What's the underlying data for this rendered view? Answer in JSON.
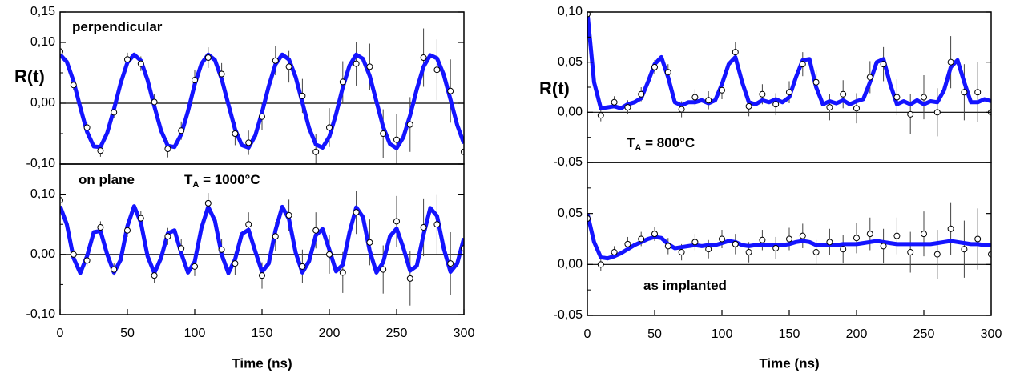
{
  "chart_data": [
    {
      "type": "line",
      "ylabel": "R(t)",
      "xlim": [
        0,
        300
      ],
      "ylim": [
        -0.1,
        0.15
      ],
      "yticks": [
        {
          "value": 0.15,
          "label": "0,15"
        },
        {
          "value": 0.1,
          "label": "0,10"
        },
        {
          "value": 0,
          "label": "0,00"
        },
        {
          "value": -0.1,
          "label": "-0,10"
        }
      ],
      "yminor": [
        0.05,
        -0.05
      ],
      "annotations": [
        {
          "text": "perpendicular"
        }
      ],
      "x": [
        0,
        5,
        10,
        15,
        20,
        25,
        30,
        35,
        40,
        45,
        50,
        55,
        60,
        65,
        70,
        75,
        80,
        85,
        90,
        95,
        100,
        105,
        110,
        115,
        120,
        125,
        130,
        135,
        140,
        145,
        150,
        155,
        160,
        165,
        170,
        175,
        180,
        185,
        190,
        195,
        200,
        205,
        210,
        215,
        220,
        225,
        230,
        235,
        240,
        245,
        250,
        255,
        260,
        265,
        270,
        275,
        280,
        285,
        290,
        295,
        300
      ],
      "series": [
        {
          "color": "#1414ff",
          "values": [
            0.08,
            0.068,
            0.036,
            -0.007,
            -0.047,
            -0.071,
            -0.072,
            -0.049,
            -0.01,
            0.033,
            0.067,
            0.08,
            0.07,
            0.038,
            -0.005,
            -0.045,
            -0.07,
            -0.072,
            -0.051,
            -0.013,
            0.031,
            0.065,
            0.08,
            0.071,
            0.04,
            -0.002,
            -0.043,
            -0.069,
            -0.073,
            -0.053,
            -0.015,
            0.028,
            0.064,
            0.08,
            0.072,
            0.043,
            0.001,
            -0.041,
            -0.068,
            -0.073,
            -0.055,
            -0.018,
            0.026,
            0.062,
            0.08,
            0.073,
            0.045,
            0.003,
            -0.039,
            -0.067,
            -0.074,
            -0.056,
            -0.02,
            0.023,
            0.06,
            0.079,
            0.074,
            0.047,
            0.006,
            -0.036,
            -0.066
          ]
        }
      ],
      "points": {
        "x": [
          0,
          10,
          20,
          30,
          40,
          50,
          60,
          70,
          80,
          90,
          100,
          110,
          120,
          130,
          140,
          150,
          160,
          170,
          180,
          190,
          200,
          210,
          220,
          230,
          240,
          250,
          260,
          270,
          280,
          290,
          300
        ],
        "values": [
          0.085,
          0.03,
          -0.04,
          -0.078,
          -0.015,
          0.072,
          0.065,
          0.002,
          -0.075,
          -0.045,
          0.038,
          0.075,
          0.048,
          -0.05,
          -0.065,
          -0.022,
          0.07,
          0.06,
          0.012,
          -0.08,
          -0.04,
          0.035,
          0.065,
          0.06,
          -0.05,
          -0.06,
          -0.035,
          0.075,
          0.055,
          0.02,
          -0.08
        ],
        "errors": [
          0.008,
          0.008,
          0.009,
          0.01,
          0.01,
          0.011,
          0.012,
          0.013,
          0.014,
          0.015,
          0.016,
          0.017,
          0.018,
          0.019,
          0.02,
          0.022,
          0.024,
          0.026,
          0.028,
          0.03,
          0.032,
          0.034,
          0.036,
          0.038,
          0.04,
          0.042,
          0.045,
          0.048,
          0.05,
          0.052,
          0.055
        ]
      }
    },
    {
      "type": "line",
      "xlabel": "Time (ns)",
      "xlim": [
        0,
        300
      ],
      "ylim": [
        -0.1,
        0.15
      ],
      "xticks": [
        0,
        50,
        100,
        150,
        200,
        250,
        300
      ],
      "yticks": [
        {
          "value": 0.1,
          "label": "0,10"
        },
        {
          "value": 0,
          "label": "0,00"
        },
        {
          "value": -0.1,
          "label": "-0,10"
        }
      ],
      "yminor": [
        0.05,
        -0.05
      ],
      "annotations": [
        {
          "text": "on plane"
        },
        {
          "text": "T",
          "sub": "A",
          "rest": " = 1000°C"
        }
      ],
      "x": [
        0,
        5,
        10,
        15,
        20,
        25,
        30,
        35,
        40,
        45,
        50,
        55,
        60,
        65,
        70,
        75,
        80,
        85,
        90,
        95,
        100,
        105,
        110,
        115,
        120,
        125,
        130,
        135,
        140,
        145,
        150,
        155,
        160,
        165,
        170,
        175,
        180,
        185,
        190,
        195,
        200,
        205,
        210,
        215,
        220,
        225,
        230,
        235,
        240,
        245,
        250,
        255,
        260,
        265,
        270,
        275,
        280,
        285,
        290,
        295,
        300
      ],
      "series": [
        {
          "color": "#1414ff",
          "values": [
            0.08,
            0.05,
            -0.006,
            -0.031,
            -0.003,
            0.037,
            0.039,
            0.0,
            -0.03,
            -0.009,
            0.047,
            0.08,
            0.053,
            -0.003,
            -0.031,
            -0.006,
            0.035,
            0.04,
            0.002,
            -0.03,
            -0.012,
            0.044,
            0.079,
            0.056,
            0.0,
            -0.031,
            -0.008,
            0.034,
            0.041,
            0.005,
            -0.029,
            -0.015,
            0.04,
            0.079,
            0.059,
            0.003,
            -0.03,
            -0.011,
            0.032,
            0.042,
            0.008,
            -0.028,
            -0.017,
            0.037,
            0.078,
            0.062,
            0.006,
            -0.03,
            -0.013,
            0.03,
            0.043,
            0.011,
            -0.027,
            -0.019,
            0.033,
            0.077,
            0.064,
            0.01,
            -0.029,
            -0.015,
            0.027
          ]
        }
      ],
      "points": {
        "x": [
          0,
          10,
          20,
          30,
          40,
          50,
          60,
          70,
          80,
          90,
          100,
          110,
          120,
          130,
          140,
          150,
          160,
          170,
          180,
          190,
          200,
          210,
          220,
          230,
          240,
          250,
          260,
          270,
          280,
          290,
          300
        ],
        "values": [
          0.09,
          0.0,
          -0.01,
          0.045,
          -0.025,
          0.04,
          0.06,
          -0.035,
          0.03,
          0.01,
          -0.02,
          0.085,
          0.008,
          -0.015,
          0.05,
          -0.035,
          0.03,
          0.065,
          -0.02,
          0.04,
          0.0,
          -0.03,
          0.07,
          0.02,
          -0.025,
          0.055,
          -0.04,
          0.045,
          0.05,
          -0.015,
          0.01
        ],
        "errors": [
          0.008,
          0.008,
          0.009,
          0.01,
          0.01,
          0.011,
          0.012,
          0.013,
          0.014,
          0.015,
          0.016,
          0.017,
          0.018,
          0.019,
          0.02,
          0.022,
          0.024,
          0.026,
          0.028,
          0.03,
          0.032,
          0.034,
          0.036,
          0.038,
          0.04,
          0.042,
          0.045,
          0.048,
          0.05,
          0.052,
          0.055
        ]
      }
    },
    {
      "type": "line",
      "ylabel": "R(t)",
      "xlim": [
        0,
        300
      ],
      "ylim": [
        -0.05,
        0.1
      ],
      "yticks": [
        {
          "value": 0.1,
          "label": "0,10"
        },
        {
          "value": 0.05,
          "label": "0,05"
        },
        {
          "value": 0,
          "label": "0,00"
        },
        {
          "value": -0.05,
          "label": "-0,05"
        }
      ],
      "yminor": [
        0.075,
        0.025,
        -0.025
      ],
      "annotations": [
        {
          "text": "T",
          "sub": "A",
          "rest": " = 800°C"
        }
      ],
      "x": [
        0,
        5,
        10,
        15,
        20,
        25,
        30,
        35,
        40,
        45,
        50,
        55,
        60,
        65,
        70,
        75,
        80,
        85,
        90,
        95,
        100,
        105,
        110,
        115,
        120,
        125,
        130,
        135,
        140,
        145,
        150,
        155,
        160,
        165,
        170,
        175,
        180,
        185,
        190,
        195,
        200,
        205,
        210,
        215,
        220,
        225,
        230,
        235,
        240,
        245,
        250,
        255,
        260,
        265,
        270,
        275,
        280,
        285,
        290,
        295,
        300
      ],
      "series": [
        {
          "color": "#1414ff",
          "values": [
            0.1,
            0.03,
            0.004,
            0.005,
            0.006,
            0.004,
            0.008,
            0.01,
            0.014,
            0.03,
            0.048,
            0.055,
            0.035,
            0.01,
            0.007,
            0.01,
            0.01,
            0.012,
            0.009,
            0.012,
            0.028,
            0.048,
            0.055,
            0.03,
            0.01,
            0.008,
            0.012,
            0.01,
            0.013,
            0.01,
            0.015,
            0.035,
            0.052,
            0.053,
            0.025,
            0.008,
            0.011,
            0.009,
            0.012,
            0.008,
            0.011,
            0.013,
            0.03,
            0.05,
            0.053,
            0.028,
            0.008,
            0.011,
            0.008,
            0.012,
            0.008,
            0.011,
            0.01,
            0.022,
            0.045,
            0.052,
            0.03,
            0.01,
            0.01,
            0.013,
            0.011
          ]
        }
      ],
      "points": {
        "x": [
          0,
          10,
          20,
          30,
          40,
          50,
          60,
          70,
          80,
          90,
          100,
          110,
          120,
          130,
          140,
          150,
          160,
          170,
          180,
          190,
          200,
          210,
          220,
          230,
          240,
          250,
          260,
          270,
          280,
          290,
          300
        ],
        "values": [
          0.098,
          -0.003,
          0.01,
          0.005,
          0.018,
          0.045,
          0.04,
          0.003,
          0.015,
          0.012,
          0.022,
          0.06,
          0.006,
          0.018,
          0.008,
          0.02,
          0.048,
          0.03,
          0.005,
          0.018,
          0.004,
          0.035,
          0.048,
          0.015,
          -0.002,
          0.015,
          0.0,
          0.05,
          0.02,
          0.02,
          0.0
        ],
        "errors": [
          0.006,
          0.006,
          0.006,
          0.007,
          0.007,
          0.007,
          0.008,
          0.008,
          0.008,
          0.009,
          0.009,
          0.01,
          0.01,
          0.01,
          0.011,
          0.011,
          0.012,
          0.012,
          0.013,
          0.014,
          0.015,
          0.016,
          0.017,
          0.018,
          0.02,
          0.022,
          0.024,
          0.026,
          0.028,
          0.03,
          0.032
        ]
      }
    },
    {
      "type": "line",
      "xlabel": "Time (ns)",
      "xlim": [
        0,
        300
      ],
      "ylim": [
        -0.05,
        0.1
      ],
      "xticks": [
        0,
        50,
        100,
        150,
        200,
        250,
        300
      ],
      "yticks": [
        {
          "value": 0.05,
          "label": "0,05"
        },
        {
          "value": 0,
          "label": "0,00"
        },
        {
          "value": -0.05,
          "label": "-0,05"
        }
      ],
      "yminor": [
        0.075,
        0.025,
        -0.025
      ],
      "annotations": [
        {
          "text": "as implanted"
        }
      ],
      "x": [
        0,
        5,
        10,
        15,
        20,
        25,
        30,
        35,
        40,
        45,
        50,
        55,
        60,
        65,
        70,
        75,
        80,
        85,
        90,
        95,
        100,
        105,
        110,
        115,
        120,
        125,
        130,
        135,
        140,
        145,
        150,
        155,
        160,
        165,
        170,
        175,
        180,
        185,
        190,
        195,
        200,
        205,
        210,
        215,
        220,
        225,
        230,
        235,
        240,
        245,
        250,
        255,
        260,
        265,
        270,
        275,
        280,
        285,
        290,
        295,
        300
      ],
      "series": [
        {
          "color": "#1414ff",
          "values": [
            0.05,
            0.022,
            0.007,
            0.006,
            0.008,
            0.011,
            0.015,
            0.019,
            0.022,
            0.025,
            0.027,
            0.026,
            0.02,
            0.016,
            0.017,
            0.018,
            0.019,
            0.018,
            0.019,
            0.019,
            0.021,
            0.023,
            0.022,
            0.019,
            0.018,
            0.019,
            0.019,
            0.019,
            0.019,
            0.019,
            0.02,
            0.022,
            0.023,
            0.022,
            0.019,
            0.019,
            0.019,
            0.019,
            0.02,
            0.02,
            0.02,
            0.021,
            0.022,
            0.023,
            0.022,
            0.021,
            0.02,
            0.02,
            0.02,
            0.02,
            0.02,
            0.02,
            0.021,
            0.022,
            0.023,
            0.022,
            0.021,
            0.02,
            0.02,
            0.019,
            0.019
          ]
        }
      ],
      "points": {
        "x": [
          0,
          10,
          20,
          30,
          40,
          50,
          60,
          70,
          80,
          90,
          100,
          110,
          120,
          130,
          140,
          150,
          160,
          170,
          180,
          190,
          200,
          210,
          220,
          230,
          240,
          250,
          260,
          270,
          280,
          290,
          300
        ],
        "values": [
          0.045,
          0.0,
          0.012,
          0.02,
          0.025,
          0.03,
          0.018,
          0.012,
          0.022,
          0.015,
          0.025,
          0.02,
          0.012,
          0.024,
          0.016,
          0.025,
          0.028,
          0.012,
          0.022,
          0.015,
          0.026,
          0.03,
          0.018,
          0.028,
          0.012,
          0.03,
          0.01,
          0.035,
          0.015,
          0.025,
          0.01
        ],
        "errors": [
          0.006,
          0.006,
          0.006,
          0.007,
          0.007,
          0.007,
          0.008,
          0.008,
          0.008,
          0.009,
          0.009,
          0.01,
          0.01,
          0.01,
          0.011,
          0.011,
          0.012,
          0.012,
          0.013,
          0.014,
          0.015,
          0.016,
          0.017,
          0.018,
          0.02,
          0.022,
          0.024,
          0.026,
          0.028,
          0.03,
          0.032
        ]
      }
    }
  ]
}
